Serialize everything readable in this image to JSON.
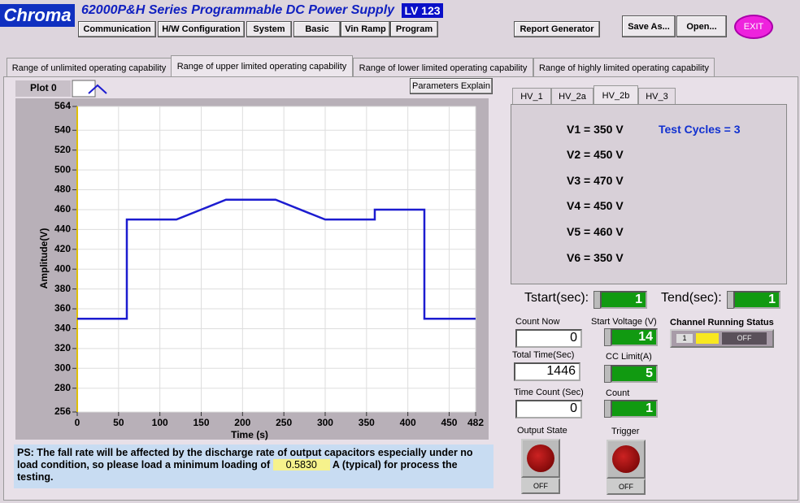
{
  "header": {
    "logo": "Chroma",
    "title": "62000P&H Series  Programmable DC Power Supply",
    "badge": "LV 123",
    "menu": [
      "Communication",
      "H/W Configuration",
      "System",
      "Basic",
      "Vin Ramp",
      "Program"
    ],
    "report": "Report Generator",
    "save": "Save As...",
    "open": "Open...",
    "exit": "EXIT"
  },
  "tabs": [
    "Range of unlimited operating capability",
    "Range of upper limited operating capability",
    "Range of lower limited operating capability",
    "Range of highly limited operating capability"
  ],
  "plot": {
    "type": "line",
    "button": "Parameters Explain",
    "xlabel": "Time (s)",
    "ylabel": "Amplitude(V)",
    "x": [
      0,
      60,
      60,
      120,
      180,
      240,
      300,
      360,
      360,
      420,
      420,
      482
    ],
    "series": [
      {
        "name": "Plot 0",
        "color": "#1c1cd0",
        "values": [
          350,
          350,
          450,
          450,
          470,
          470,
          450,
          450,
          460,
          460,
          350,
          350
        ]
      }
    ],
    "xlim": [
      0,
      482
    ],
    "ylim": [
      256,
      564
    ],
    "xticks": [
      0,
      50,
      100,
      150,
      200,
      250,
      300,
      350,
      400,
      450,
      482
    ],
    "yticks": [
      256,
      280,
      300,
      320,
      340,
      360,
      380,
      400,
      420,
      440,
      460,
      480,
      500,
      520,
      540,
      564
    ],
    "grid": true
  },
  "note": {
    "before": "PS: The fall rate will be affected by the discharge rate of output capacitors especially under no load condition, so please load a minimum loading of",
    "value": "0.5830",
    "after": "A (typical) for process the testing."
  },
  "hv_tabs": [
    "HV_1",
    "HV_2a",
    "HV_2b",
    "HV_3"
  ],
  "voltages": [
    "V1 = 350 V",
    "V2 = 450 V",
    "V3 = 470 V",
    "V4 = 450 V",
    "V5 = 460 V",
    "V6 = 350 V"
  ],
  "test_cycles": "Test Cycles = 3",
  "tstart": {
    "label": "Tstart(sec):",
    "value": 1
  },
  "tend": {
    "label": "Tend(sec):",
    "value": 1
  },
  "count_now": {
    "label": "Count Now",
    "value": 0
  },
  "total_time": {
    "label": "Total Time(Sec)",
    "value": 1446
  },
  "time_count": {
    "label": "Time Count (Sec)",
    "value": 0
  },
  "start_voltage": {
    "label": "Start Voltage (V)",
    "value": 14
  },
  "cc_limit": {
    "label": "CC Limit(A)",
    "value": 5
  },
  "count": {
    "label": "Count",
    "value": 1
  },
  "channel_status": {
    "label": "Channel Running Status",
    "channel": 1,
    "state": "OFF"
  },
  "output_state": {
    "label": "Output State",
    "state": "OFF"
  },
  "trigger": {
    "label": "Trigger",
    "state": "OFF"
  }
}
